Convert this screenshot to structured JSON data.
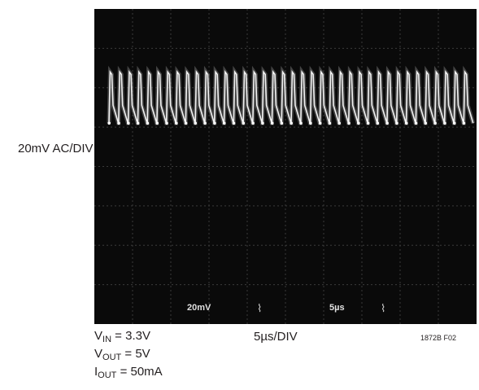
{
  "chart_data": {
    "type": "line",
    "title": "",
    "ylabel": "20mV AC/DIV",
    "xlabel": "5µs/DIV",
    "grid": true,
    "grid_divisions": {
      "x": 10,
      "y": 8
    },
    "series": [
      {
        "waveform": "periodic sawtooth ripple",
        "cycles_visible": 38,
        "peak_to_peak_mV": 26,
        "x_range_us": [
          0,
          50
        ],
        "y_range_mV": [
          -80,
          80
        ]
      }
    ],
    "screen_readout": {
      "channel": "20mV",
      "timebase": "5µs"
    }
  },
  "conditions": {
    "vin": {
      "symbol": "V",
      "sub": "IN",
      "value": " = 3.3V"
    },
    "vout": {
      "symbol": "V",
      "sub": "OUT",
      "value": " = 5V"
    },
    "iout": {
      "symbol": "I",
      "sub": "OUT",
      "value": " = 50mA"
    }
  },
  "figure_id": "1872B F02",
  "colors": {
    "screen": "#0a0a0a",
    "trace": "#f2f2f2",
    "grid": "#3a3a3a"
  }
}
